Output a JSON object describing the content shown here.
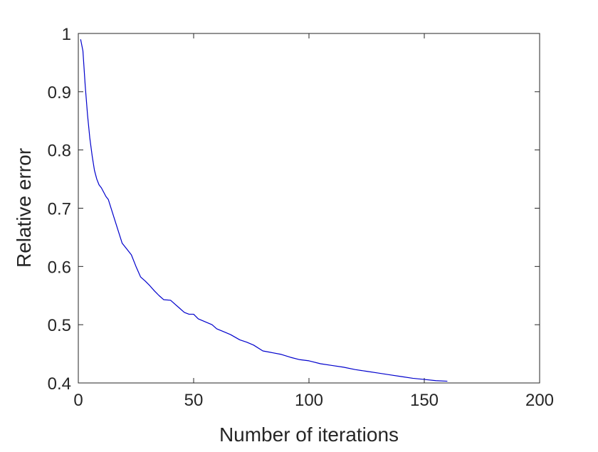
{
  "chart_data": {
    "type": "line",
    "xlabel": "Number of iterations",
    "ylabel": "Relative error",
    "xlim": [
      0,
      200
    ],
    "ylim": [
      0.4,
      1.0
    ],
    "xticks": [
      0,
      50,
      100,
      150,
      200
    ],
    "xtick_labels": [
      "0",
      "50",
      "100",
      "150",
      "200"
    ],
    "yticks": [
      0.4,
      0.5,
      0.6,
      0.7,
      0.8,
      0.9,
      1.0
    ],
    "ytick_labels": [
      "0.4",
      "0.5",
      "0.6",
      "0.7",
      "0.8",
      "0.9",
      "1"
    ],
    "grid": false,
    "series": [
      {
        "color": "#0000cc",
        "x": [
          1,
          2,
          3,
          4,
          5,
          6,
          7,
          8,
          9,
          10,
          12,
          13,
          15,
          17,
          19,
          21,
          23,
          25,
          27,
          29,
          31,
          33,
          35,
          37,
          40,
          42,
          44,
          46,
          48,
          50,
          52,
          55,
          58,
          60,
          63,
          66,
          70,
          73,
          76,
          80,
          84,
          88,
          92,
          96,
          100,
          105,
          110,
          115,
          120,
          125,
          130,
          135,
          140,
          145,
          150,
          155,
          160
        ],
        "y": [
          0.99,
          0.97,
          0.91,
          0.86,
          0.82,
          0.79,
          0.765,
          0.75,
          0.74,
          0.735,
          0.72,
          0.715,
          0.69,
          0.665,
          0.64,
          0.63,
          0.62,
          0.6,
          0.582,
          0.575,
          0.567,
          0.558,
          0.55,
          0.543,
          0.542,
          0.535,
          0.528,
          0.521,
          0.518,
          0.518,
          0.51,
          0.505,
          0.5,
          0.493,
          0.488,
          0.483,
          0.474,
          0.47,
          0.465,
          0.455,
          0.452,
          0.449,
          0.444,
          0.44,
          0.438,
          0.433,
          0.43,
          0.427,
          0.423,
          0.42,
          0.417,
          0.414,
          0.411,
          0.408,
          0.406,
          0.404,
          0.403
        ]
      }
    ]
  }
}
